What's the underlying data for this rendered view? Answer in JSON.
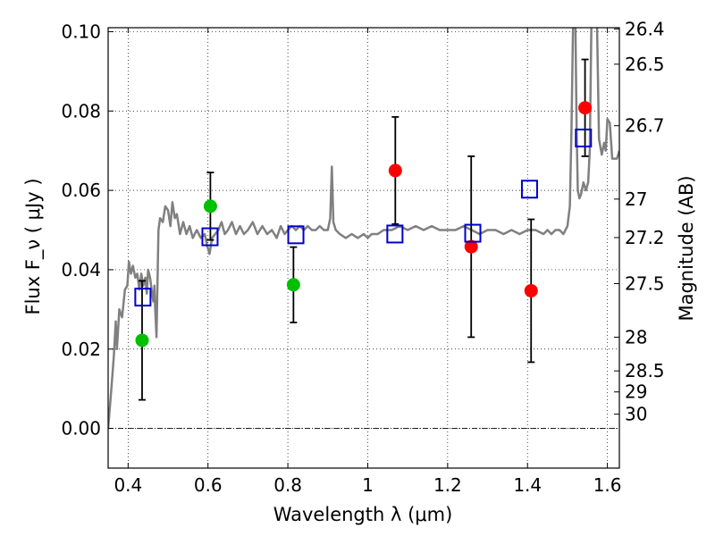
{
  "chart_data": {
    "type": "scatter",
    "title": "",
    "xlabel": "Wavelength  λ (μm)",
    "ylabel": "Flux  F_ν  ( μJy )",
    "ylabel_right": "Magnitude (AB)",
    "xlim": [
      0.35,
      1.63
    ],
    "ylim": [
      -0.01,
      0.101
    ],
    "grid": true,
    "x_ticks": [
      0.4,
      0.6,
      0.8,
      1.0,
      1.2,
      1.4,
      1.6
    ],
    "x_tick_labels": [
      "0.4",
      "0.6",
      "0.8",
      "1",
      "1.2",
      "1.4",
      "1.6"
    ],
    "y_ticks": [
      0.0,
      0.02,
      0.04,
      0.06,
      0.08,
      0.1
    ],
    "y_tick_labels": [
      "0.00",
      "0.02",
      "0.04",
      "0.06",
      "0.08",
      "0.10"
    ],
    "right_ticks": [
      {
        "label": "26.4",
        "flux": 0.1007
      },
      {
        "label": "26.5",
        "flux": 0.0918
      },
      {
        "label": "26.7",
        "flux": 0.0763
      },
      {
        "label": "27",
        "flux": 0.0578
      },
      {
        "label": "27.2",
        "flux": 0.0481
      },
      {
        "label": "27.5",
        "flux": 0.0365
      },
      {
        "label": "28",
        "flux": 0.023
      },
      {
        "label": "28.5",
        "flux": 0.0145
      },
      {
        "label": "29",
        "flux": 0.0092
      },
      {
        "label": "30",
        "flux": 0.0036
      }
    ],
    "series": [
      {
        "marker": "circle",
        "color": "#00c000",
        "points": [
          {
            "x": 0.435,
            "y": 0.0222,
            "err": 0.015
          },
          {
            "x": 0.606,
            "y": 0.056,
            "err": 0.0085
          },
          {
            "x": 0.814,
            "y": 0.0362,
            "err": 0.0095
          }
        ]
      },
      {
        "marker": "circle",
        "color": "#ff0000",
        "points": [
          {
            "x": 1.069,
            "y": 0.065,
            "err": 0.0135
          },
          {
            "x": 1.259,
            "y": 0.0458,
            "err": 0.0228
          },
          {
            "x": 1.409,
            "y": 0.0347,
            "err": 0.018
          },
          {
            "x": 1.544,
            "y": 0.0808,
            "err": 0.0122
          }
        ]
      },
      {
        "marker": "open-square",
        "color": "#0000cc",
        "points": [
          {
            "x": 0.437,
            "y": 0.0331
          },
          {
            "x": 0.605,
            "y": 0.0483
          },
          {
            "x": 0.82,
            "y": 0.0488
          },
          {
            "x": 1.068,
            "y": 0.049
          },
          {
            "x": 1.263,
            "y": 0.0492
          },
          {
            "x": 1.405,
            "y": 0.0603
          },
          {
            "x": 1.54,
            "y": 0.0732
          }
        ]
      },
      {
        "type": "line",
        "color": "#808080",
        "points": [
          [
            0.35,
            0.0
          ],
          [
            0.358,
            0.01
          ],
          [
            0.364,
            0.018
          ],
          [
            0.369,
            0.027
          ],
          [
            0.372,
            0.02
          ],
          [
            0.378,
            0.03
          ],
          [
            0.385,
            0.028
          ],
          [
            0.392,
            0.035
          ],
          [
            0.398,
            0.036
          ],
          [
            0.402,
            0.042
          ],
          [
            0.407,
            0.039
          ],
          [
            0.412,
            0.041
          ],
          [
            0.418,
            0.038
          ],
          [
            0.423,
            0.039
          ],
          [
            0.428,
            0.035
          ],
          [
            0.433,
            0.039
          ],
          [
            0.438,
            0.036
          ],
          [
            0.443,
            0.038
          ],
          [
            0.447,
            0.034
          ],
          [
            0.45,
            0.04
          ],
          [
            0.455,
            0.038
          ],
          [
            0.46,
            0.034
          ],
          [
            0.463,
            0.032
          ],
          [
            0.466,
            0.036
          ],
          [
            0.468,
            0.03
          ],
          [
            0.471,
            0.023
          ],
          [
            0.476,
            0.05
          ],
          [
            0.48,
            0.053
          ],
          [
            0.487,
            0.052
          ],
          [
            0.493,
            0.056
          ],
          [
            0.5,
            0.055
          ],
          [
            0.506,
            0.051
          ],
          [
            0.511,
            0.057
          ],
          [
            0.517,
            0.053
          ],
          [
            0.522,
            0.054
          ],
          [
            0.53,
            0.049
          ],
          [
            0.538,
            0.052
          ],
          [
            0.546,
            0.049
          ],
          [
            0.554,
            0.051
          ],
          [
            0.562,
            0.048
          ],
          [
            0.572,
            0.05
          ],
          [
            0.582,
            0.048
          ],
          [
            0.592,
            0.049
          ],
          [
            0.598,
            0.046
          ],
          [
            0.604,
            0.044
          ],
          [
            0.61,
            0.048
          ],
          [
            0.618,
            0.049
          ],
          [
            0.626,
            0.05
          ],
          [
            0.634,
            0.052
          ],
          [
            0.642,
            0.049
          ],
          [
            0.65,
            0.05
          ],
          [
            0.66,
            0.052
          ],
          [
            0.67,
            0.049
          ],
          [
            0.68,
            0.051
          ],
          [
            0.69,
            0.049
          ],
          [
            0.7,
            0.05
          ],
          [
            0.712,
            0.052
          ],
          [
            0.724,
            0.049
          ],
          [
            0.736,
            0.051
          ],
          [
            0.748,
            0.049
          ],
          [
            0.76,
            0.05
          ],
          [
            0.772,
            0.048
          ],
          [
            0.782,
            0.051
          ],
          [
            0.792,
            0.049
          ],
          [
            0.8,
            0.05
          ],
          [
            0.81,
            0.051
          ],
          [
            0.82,
            0.05
          ],
          [
            0.83,
            0.051
          ],
          [
            0.84,
            0.05
          ],
          [
            0.85,
            0.051
          ],
          [
            0.86,
            0.05
          ],
          [
            0.87,
            0.05
          ],
          [
            0.88,
            0.051
          ],
          [
            0.89,
            0.05
          ],
          [
            0.9,
            0.05
          ],
          [
            0.906,
            0.053
          ],
          [
            0.91,
            0.066
          ],
          [
            0.914,
            0.052
          ],
          [
            0.92,
            0.05
          ],
          [
            0.93,
            0.049
          ],
          [
            0.945,
            0.048
          ],
          [
            0.96,
            0.049
          ],
          [
            0.975,
            0.048
          ],
          [
            0.99,
            0.049
          ],
          [
            1.0,
            0.048
          ],
          [
            1.01,
            0.049
          ],
          [
            1.025,
            0.049
          ],
          [
            1.04,
            0.05
          ],
          [
            1.06,
            0.05
          ],
          [
            1.08,
            0.051
          ],
          [
            1.1,
            0.05
          ],
          [
            1.12,
            0.051
          ],
          [
            1.14,
            0.05
          ],
          [
            1.16,
            0.051
          ],
          [
            1.18,
            0.05
          ],
          [
            1.2,
            0.05
          ],
          [
            1.22,
            0.05
          ],
          [
            1.24,
            0.051
          ],
          [
            1.26,
            0.05
          ],
          [
            1.28,
            0.049
          ],
          [
            1.3,
            0.05
          ],
          [
            1.32,
            0.05
          ],
          [
            1.34,
            0.049
          ],
          [
            1.36,
            0.05
          ],
          [
            1.38,
            0.049
          ],
          [
            1.4,
            0.05
          ],
          [
            1.42,
            0.05
          ],
          [
            1.44,
            0.049
          ],
          [
            1.45,
            0.05
          ],
          [
            1.46,
            0.049
          ],
          [
            1.47,
            0.05
          ],
          [
            1.48,
            0.05
          ],
          [
            1.49,
            0.049
          ],
          [
            1.5,
            0.051
          ],
          [
            1.506,
            0.056
          ],
          [
            1.51,
            0.075
          ],
          [
            1.514,
            0.102
          ],
          [
            1.52,
            0.102
          ],
          [
            1.523,
            0.075
          ],
          [
            1.526,
            0.06
          ],
          [
            1.53,
            0.058
          ],
          [
            1.534,
            0.059
          ],
          [
            1.54,
            0.062
          ],
          [
            1.546,
            0.06
          ],
          [
            1.552,
            0.062
          ],
          [
            1.556,
            0.07
          ],
          [
            1.56,
            0.102
          ],
          [
            1.574,
            0.102
          ],
          [
            1.579,
            0.073
          ],
          [
            1.586,
            0.069
          ],
          [
            1.592,
            0.072
          ],
          [
            1.596,
            0.07
          ],
          [
            1.6,
            0.078
          ],
          [
            1.606,
            0.077
          ],
          [
            1.612,
            0.068
          ],
          [
            1.618,
            0.068
          ],
          [
            1.624,
            0.068
          ],
          [
            1.63,
            0.07
          ]
        ]
      }
    ]
  }
}
